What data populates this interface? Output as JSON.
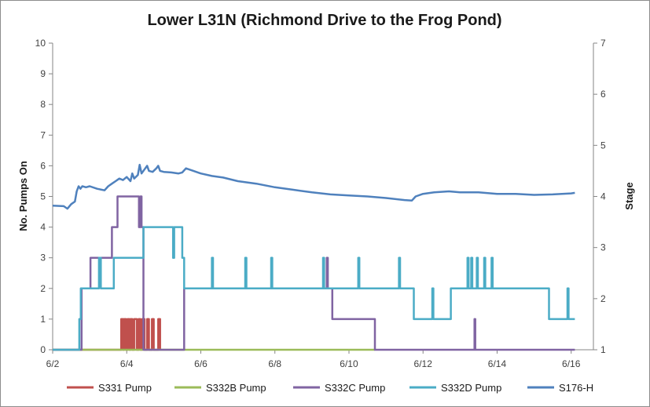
{
  "chart_data": {
    "type": "line",
    "title": "Lower L31N (Richmond Drive to the Frog Pond)",
    "ylabel_left": "No. Pumps On",
    "ylabel_right": "Stage",
    "xlim": [
      0,
      14.6
    ],
    "ylim_left": [
      0,
      10
    ],
    "ylim_right": [
      1,
      7
    ],
    "x_ticks": [
      {
        "x": 0,
        "label": "6/2"
      },
      {
        "x": 2,
        "label": "6/4"
      },
      {
        "x": 4,
        "label": "6/6"
      },
      {
        "x": 6,
        "label": "6/8"
      },
      {
        "x": 8,
        "label": "6/10"
      },
      {
        "x": 10,
        "label": "6/12"
      },
      {
        "x": 12,
        "label": "6/14"
      },
      {
        "x": 14,
        "label": "6/16"
      }
    ],
    "y_ticks_left": [
      "0",
      "1",
      "2",
      "3",
      "4",
      "5",
      "6",
      "7",
      "8",
      "9",
      "10"
    ],
    "y_ticks_right": [
      "1",
      "2",
      "3",
      "4",
      "5",
      "6",
      "7"
    ],
    "grid": false,
    "legend_position": "bottom",
    "series": [
      {
        "name": "S331 Pump",
        "color": "#C0504D",
        "axis": "left",
        "step": true,
        "points": [
          [
            0,
            0
          ],
          [
            1.85,
            0
          ],
          [
            1.85,
            1
          ],
          [
            1.9,
            1
          ],
          [
            1.9,
            0
          ],
          [
            1.93,
            0
          ],
          [
            1.93,
            1
          ],
          [
            1.98,
            1
          ],
          [
            1.98,
            0
          ],
          [
            2.02,
            0
          ],
          [
            2.02,
            1
          ],
          [
            2.07,
            1
          ],
          [
            2.07,
            0
          ],
          [
            2.1,
            0
          ],
          [
            2.1,
            1
          ],
          [
            2.15,
            1
          ],
          [
            2.15,
            0
          ],
          [
            2.2,
            0
          ],
          [
            2.2,
            1
          ],
          [
            2.27,
            1
          ],
          [
            2.27,
            0
          ],
          [
            2.32,
            0
          ],
          [
            2.32,
            1
          ],
          [
            2.37,
            1
          ],
          [
            2.37,
            0
          ],
          [
            2.42,
            0
          ],
          [
            2.42,
            1
          ],
          [
            2.48,
            1
          ],
          [
            2.48,
            0
          ],
          [
            2.55,
            0
          ],
          [
            2.55,
            1
          ],
          [
            2.6,
            1
          ],
          [
            2.6,
            0
          ],
          [
            2.68,
            0
          ],
          [
            2.68,
            1
          ],
          [
            2.73,
            1
          ],
          [
            2.73,
            0
          ],
          [
            2.85,
            0
          ],
          [
            2.85,
            1
          ],
          [
            2.9,
            1
          ],
          [
            2.9,
            0
          ]
        ]
      },
      {
        "name": "S332B Pump",
        "color": "#9BBB59",
        "axis": "left",
        "step": true,
        "points": [
          [
            0,
            0
          ],
          [
            8.7,
            0
          ]
        ]
      },
      {
        "name": "S332C Pump",
        "color": "#8064A2",
        "axis": "left",
        "step": true,
        "points": [
          [
            0,
            0
          ],
          [
            0.78,
            0
          ],
          [
            0.78,
            2
          ],
          [
            1.02,
            2
          ],
          [
            1.02,
            3
          ],
          [
            1.6,
            3
          ],
          [
            1.6,
            4
          ],
          [
            1.75,
            4
          ],
          [
            1.75,
            5
          ],
          [
            2.33,
            5
          ],
          [
            2.33,
            4
          ],
          [
            2.37,
            4
          ],
          [
            2.37,
            5
          ],
          [
            2.4,
            5
          ],
          [
            2.4,
            4
          ],
          [
            2.45,
            4
          ],
          [
            2.45,
            0
          ],
          [
            3.55,
            0
          ],
          [
            3.55,
            2
          ],
          [
            7.4,
            2
          ],
          [
            7.4,
            3
          ],
          [
            7.43,
            3
          ],
          [
            7.43,
            2
          ],
          [
            7.55,
            2
          ],
          [
            7.55,
            1
          ],
          [
            8.7,
            1
          ],
          [
            8.7,
            0
          ],
          [
            11.39,
            0
          ],
          [
            11.39,
            1
          ],
          [
            11.41,
            1
          ],
          [
            11.41,
            0
          ],
          [
            14.1,
            0
          ]
        ]
      },
      {
        "name": "S332D Pump",
        "color": "#4BACC6",
        "axis": "left",
        "step": true,
        "points": [
          [
            0,
            0
          ],
          [
            0.72,
            0
          ],
          [
            0.72,
            1
          ],
          [
            0.76,
            1
          ],
          [
            0.76,
            2
          ],
          [
            1.25,
            2
          ],
          [
            1.25,
            3
          ],
          [
            1.3,
            3
          ],
          [
            1.3,
            2
          ],
          [
            1.65,
            2
          ],
          [
            1.65,
            3
          ],
          [
            2.45,
            3
          ],
          [
            2.45,
            4
          ],
          [
            3.25,
            4
          ],
          [
            3.25,
            3
          ],
          [
            3.28,
            3
          ],
          [
            3.28,
            4
          ],
          [
            3.5,
            4
          ],
          [
            3.5,
            3
          ],
          [
            3.55,
            3
          ],
          [
            3.55,
            2
          ],
          [
            4.3,
            2
          ],
          [
            4.3,
            3
          ],
          [
            4.33,
            3
          ],
          [
            4.33,
            2
          ],
          [
            5.2,
            2
          ],
          [
            5.2,
            3
          ],
          [
            5.23,
            3
          ],
          [
            5.23,
            2
          ],
          [
            5.9,
            2
          ],
          [
            5.9,
            3
          ],
          [
            5.93,
            3
          ],
          [
            5.93,
            2
          ],
          [
            7.3,
            2
          ],
          [
            7.3,
            3
          ],
          [
            7.33,
            3
          ],
          [
            7.33,
            2
          ],
          [
            8.25,
            2
          ],
          [
            8.25,
            3
          ],
          [
            8.28,
            3
          ],
          [
            8.28,
            2
          ],
          [
            9.35,
            2
          ],
          [
            9.35,
            3
          ],
          [
            9.38,
            3
          ],
          [
            9.38,
            2
          ],
          [
            9.75,
            2
          ],
          [
            9.75,
            1
          ],
          [
            10.25,
            1
          ],
          [
            10.25,
            2
          ],
          [
            10.28,
            2
          ],
          [
            10.28,
            1
          ],
          [
            10.75,
            1
          ],
          [
            10.75,
            2
          ],
          [
            11.2,
            2
          ],
          [
            11.2,
            3
          ],
          [
            11.23,
            3
          ],
          [
            11.23,
            2
          ],
          [
            11.3,
            2
          ],
          [
            11.3,
            3
          ],
          [
            11.33,
            3
          ],
          [
            11.33,
            2
          ],
          [
            11.45,
            2
          ],
          [
            11.45,
            3
          ],
          [
            11.48,
            3
          ],
          [
            11.48,
            2
          ],
          [
            11.65,
            2
          ],
          [
            11.65,
            3
          ],
          [
            11.68,
            3
          ],
          [
            11.68,
            2
          ],
          [
            11.85,
            2
          ],
          [
            11.85,
            3
          ],
          [
            11.88,
            3
          ],
          [
            11.88,
            2
          ],
          [
            13.4,
            2
          ],
          [
            13.4,
            1
          ],
          [
            13.9,
            1
          ],
          [
            13.9,
            2
          ],
          [
            13.93,
            2
          ],
          [
            13.93,
            1
          ],
          [
            14.1,
            1
          ]
        ]
      },
      {
        "name": "S176-H",
        "color": "#4F81BD",
        "axis": "right",
        "step": false,
        "points": [
          [
            0,
            3.82
          ],
          [
            0.3,
            3.81
          ],
          [
            0.4,
            3.76
          ],
          [
            0.5,
            3.85
          ],
          [
            0.6,
            3.9
          ],
          [
            0.65,
            4.1
          ],
          [
            0.7,
            4.2
          ],
          [
            0.75,
            4.15
          ],
          [
            0.8,
            4.2
          ],
          [
            0.9,
            4.18
          ],
          [
            1.0,
            4.2
          ],
          [
            1.2,
            4.15
          ],
          [
            1.4,
            4.12
          ],
          [
            1.5,
            4.2
          ],
          [
            1.6,
            4.25
          ],
          [
            1.7,
            4.3
          ],
          [
            1.8,
            4.35
          ],
          [
            1.9,
            4.32
          ],
          [
            2.0,
            4.38
          ],
          [
            2.1,
            4.3
          ],
          [
            2.15,
            4.45
          ],
          [
            2.2,
            4.35
          ],
          [
            2.3,
            4.42
          ],
          [
            2.35,
            4.62
          ],
          [
            2.4,
            4.45
          ],
          [
            2.5,
            4.55
          ],
          [
            2.55,
            4.6
          ],
          [
            2.6,
            4.5
          ],
          [
            2.7,
            4.48
          ],
          [
            2.8,
            4.55
          ],
          [
            2.85,
            4.6
          ],
          [
            2.9,
            4.5
          ],
          [
            3.0,
            4.48
          ],
          [
            3.2,
            4.47
          ],
          [
            3.4,
            4.45
          ],
          [
            3.5,
            4.47
          ],
          [
            3.6,
            4.55
          ],
          [
            3.8,
            4.5
          ],
          [
            4.0,
            4.45
          ],
          [
            4.3,
            4.4
          ],
          [
            4.6,
            4.37
          ],
          [
            5.0,
            4.3
          ],
          [
            5.5,
            4.25
          ],
          [
            6.0,
            4.18
          ],
          [
            6.5,
            4.13
          ],
          [
            7.0,
            4.08
          ],
          [
            7.5,
            4.04
          ],
          [
            8.0,
            4.02
          ],
          [
            8.5,
            4.0
          ],
          [
            9.0,
            3.97
          ],
          [
            9.5,
            3.93
          ],
          [
            9.7,
            3.92
          ],
          [
            9.8,
            4.0
          ],
          [
            10.0,
            4.05
          ],
          [
            10.3,
            4.08
          ],
          [
            10.7,
            4.1
          ],
          [
            11.0,
            4.08
          ],
          [
            11.5,
            4.08
          ],
          [
            12.0,
            4.05
          ],
          [
            12.5,
            4.05
          ],
          [
            13.0,
            4.03
          ],
          [
            13.5,
            4.04
          ],
          [
            14.0,
            4.06
          ],
          [
            14.1,
            4.07
          ]
        ]
      }
    ]
  }
}
